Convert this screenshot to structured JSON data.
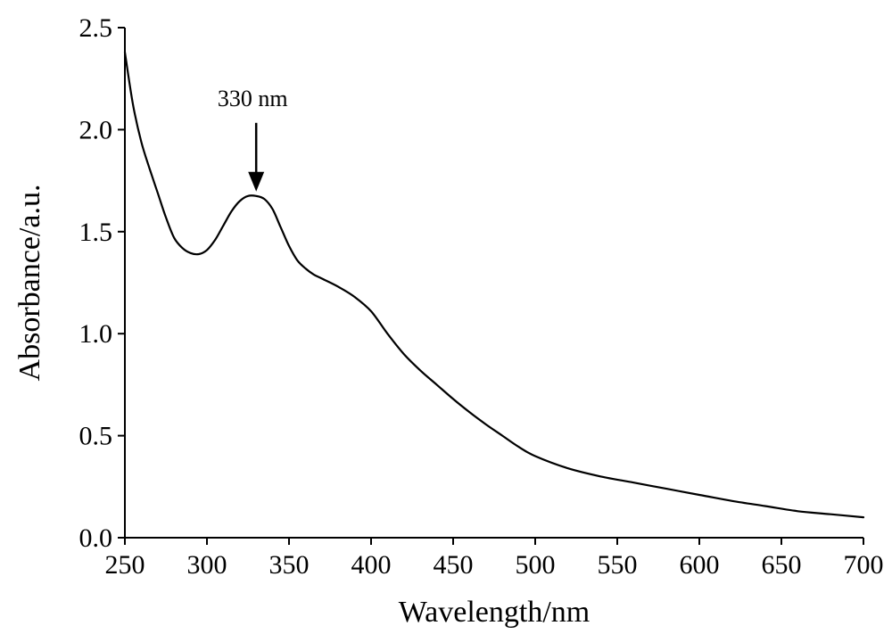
{
  "chart_data": {
    "type": "line",
    "title": "",
    "xlabel": "Wavelength/nm",
    "ylabel": "Absorbance/a.u.",
    "xlim": [
      250,
      700
    ],
    "ylim": [
      0.0,
      2.5
    ],
    "x_ticks": [
      "250",
      "300",
      "350",
      "400",
      "450",
      "500",
      "550",
      "600",
      "650",
      "700"
    ],
    "y_ticks": [
      "0.0",
      "0.5",
      "1.0",
      "1.5",
      "2.0",
      "2.5"
    ],
    "grid": false,
    "legend": "none",
    "series": [
      {
        "color": "#000000",
        "x": [
          250,
          255,
          260,
          265,
          270,
          275,
          280,
          285,
          290,
          295,
          300,
          305,
          310,
          315,
          320,
          325,
          330,
          335,
          340,
          345,
          350,
          355,
          360,
          365,
          370,
          380,
          390,
          400,
          410,
          420,
          430,
          440,
          450,
          460,
          470,
          480,
          490,
          500,
          520,
          540,
          560,
          580,
          600,
          620,
          640,
          660,
          680,
          700
        ],
        "y": [
          2.38,
          2.12,
          1.94,
          1.81,
          1.69,
          1.57,
          1.47,
          1.42,
          1.395,
          1.39,
          1.41,
          1.46,
          1.53,
          1.6,
          1.65,
          1.675,
          1.675,
          1.66,
          1.61,
          1.52,
          1.43,
          1.36,
          1.32,
          1.29,
          1.27,
          1.23,
          1.18,
          1.11,
          1.0,
          0.9,
          0.82,
          0.75,
          0.68,
          0.615,
          0.555,
          0.5,
          0.445,
          0.4,
          0.34,
          0.3,
          0.27,
          0.24,
          0.21,
          0.18,
          0.155,
          0.13,
          0.115,
          0.1
        ]
      }
    ],
    "annotations": [
      {
        "text": "330 nm",
        "x": 330,
        "y": 1.675,
        "arrow": "down"
      }
    ]
  }
}
